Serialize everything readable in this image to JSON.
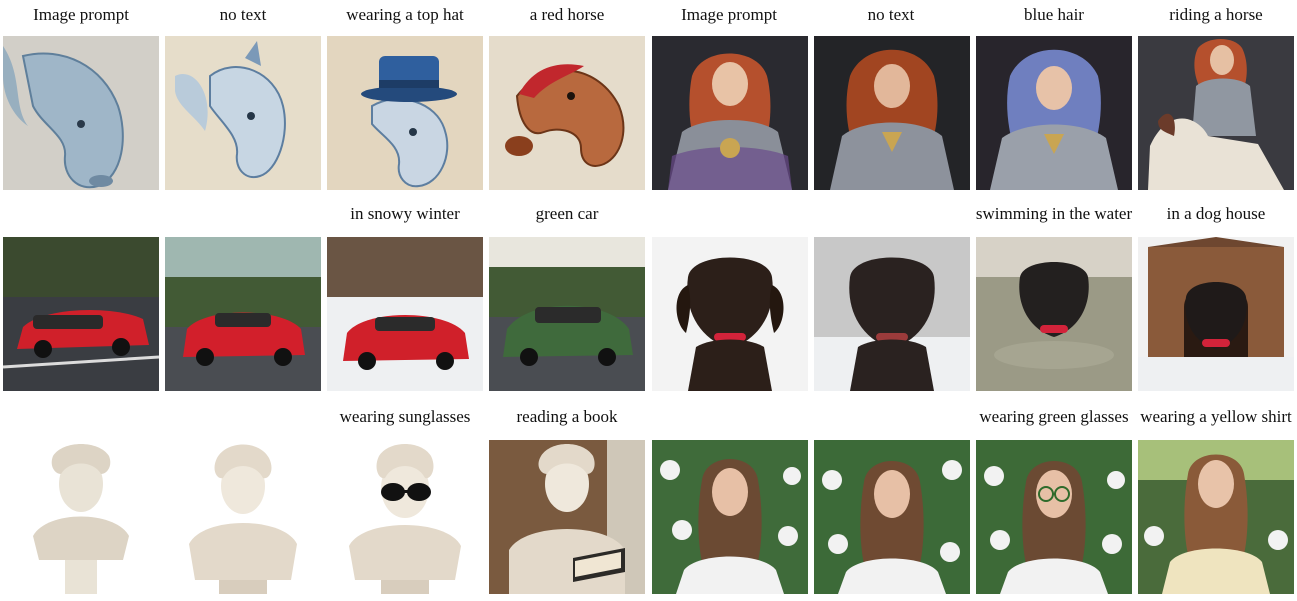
{
  "figure": {
    "rows": [
      {
        "subject": "horse",
        "captions": [
          "Image prompt",
          "no text",
          "wearing a  top hat",
          "a red horse",
          "Image prompt",
          "no text",
          "blue hair",
          "riding a horse"
        ]
      },
      {
        "subject": "car-dog",
        "captions": [
          "",
          "",
          "in snowy winter",
          "green car",
          "",
          "",
          "swimming in the water",
          "in a dog house"
        ]
      },
      {
        "subject": "statue-woman",
        "captions": [
          "",
          "",
          "wearing sunglasses",
          "reading a book",
          "",
          "",
          "wearing green glasses",
          "wearing a yellow shirt"
        ]
      }
    ]
  },
  "colors": {
    "horse_bg": "#d8cfbf",
    "horse_blue": "#7c9bb9",
    "horse_red": "#b8693e",
    "top_hat": "#2f5f9e",
    "warrior_bg": "#2a2a30",
    "warrior_hair": "#b5502d",
    "warrior_blue_hair": "#6f7fbf",
    "car_red": "#d0202a",
    "car_green": "#3f6a3c",
    "road": "#3a3d42",
    "dog": "#2c1f19",
    "snow": "#eef0f2",
    "water": "#9b9a86",
    "doghouse": "#8a5a3a",
    "statue": "#e9e3d6",
    "woman_hair": "#6b4a33",
    "flowers_green": "#3f6b3a",
    "shirt_white": "#f2f2f2",
    "shirt_yellow": "#efe4bf"
  }
}
